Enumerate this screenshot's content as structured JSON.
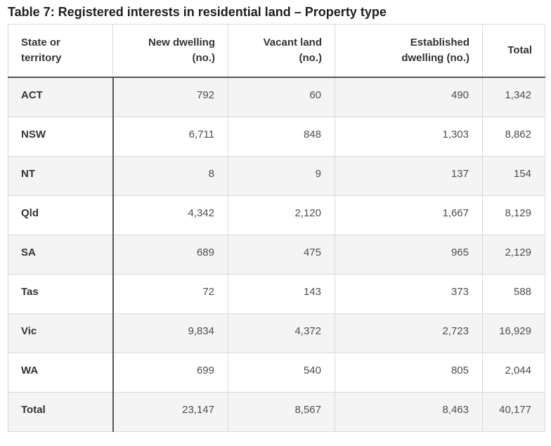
{
  "title": "Table 7: Registered interests in residential land – Property type",
  "colors": {
    "dark_rule": "#555555",
    "light_border": "#d9d9d9",
    "stripe_row_bg": "#f4f4f4",
    "header_text": "#333333",
    "number_text": "#4d4d4d",
    "title_text": "#1f1f1f"
  },
  "table": {
    "column_headers": [
      "State or territory",
      "New dwelling (no.)",
      "Vacant land (no.)",
      "Established dwelling (no.)",
      "Total"
    ],
    "rows": [
      {
        "label": "ACT",
        "values": [
          "792",
          "60",
          "490",
          "1,342"
        ]
      },
      {
        "label": "NSW",
        "values": [
          "6,711",
          "848",
          "1,303",
          "8,862"
        ]
      },
      {
        "label": "NT",
        "values": [
          "8",
          "9",
          "137",
          "154"
        ]
      },
      {
        "label": "Qld",
        "values": [
          "4,342",
          "2,120",
          "1,667",
          "8,129"
        ]
      },
      {
        "label": "SA",
        "values": [
          "689",
          "475",
          "965",
          "2,129"
        ]
      },
      {
        "label": "Tas",
        "values": [
          "72",
          "143",
          "373",
          "588"
        ]
      },
      {
        "label": "Vic",
        "values": [
          "9,834",
          "4,372",
          "2,723",
          "16,929"
        ]
      },
      {
        "label": "WA",
        "values": [
          "699",
          "540",
          "805",
          "2,044"
        ]
      },
      {
        "label": "Total",
        "values": [
          "23,147",
          "8,567",
          "8,463",
          "40,177"
        ]
      }
    ]
  },
  "chart_data": {
    "type": "table",
    "title": "Table 7: Registered interests in residential land – Property type",
    "columns": [
      "State or territory",
      "New dwelling (no.)",
      "Vacant land (no.)",
      "Established dwelling (no.)",
      "Total"
    ],
    "rows": [
      [
        "ACT",
        792,
        60,
        490,
        1342
      ],
      [
        "NSW",
        6711,
        848,
        1303,
        8862
      ],
      [
        "NT",
        8,
        9,
        137,
        154
      ],
      [
        "Qld",
        4342,
        2120,
        1667,
        8129
      ],
      [
        "SA",
        689,
        475,
        965,
        2129
      ],
      [
        "Tas",
        72,
        143,
        373,
        588
      ],
      [
        "Vic",
        9834,
        4372,
        2723,
        16929
      ],
      [
        "WA",
        699,
        540,
        805,
        2044
      ],
      [
        "Total",
        23147,
        8567,
        8463,
        40177
      ]
    ]
  }
}
